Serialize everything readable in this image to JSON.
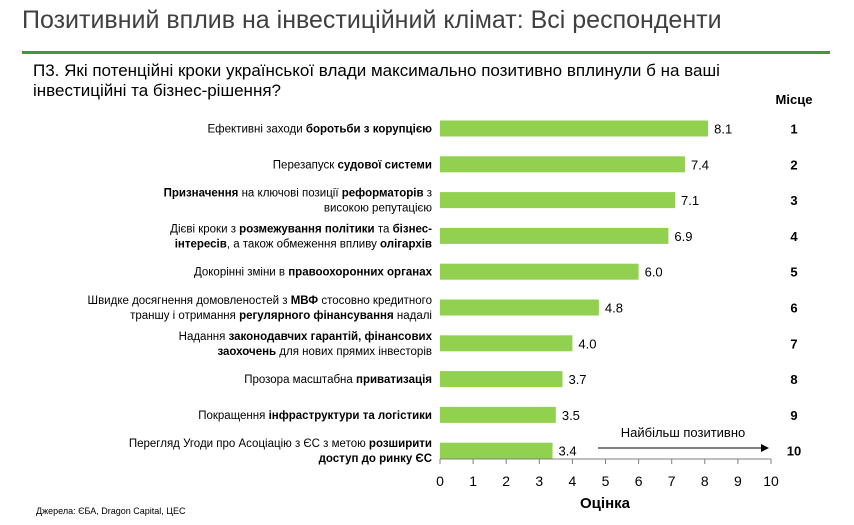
{
  "header": {
    "title": "Позитивний вплив на інвестиційний клімат: Всі респонденти",
    "question": "П3. Які потенційні кроки української влади максимально позитивно вплинули б на ваші інвестиційні та бізнес-рішення?"
  },
  "source": "Джерела: ЄБА, Dragon Capital, ЦЕС",
  "colors": {
    "bar": "#92d050",
    "rule": "#3d9b35",
    "title": "#404040"
  },
  "chart_data": {
    "type": "bar",
    "orientation": "horizontal",
    "xlabel": "Оцінка",
    "xlim": [
      0,
      10
    ],
    "xticks": [
      0,
      1,
      2,
      3,
      4,
      5,
      6,
      7,
      8,
      9,
      10
    ],
    "rank_header": "Місце",
    "annotation": "Найбільш позитивно",
    "categories": [
      {
        "lines": [
          [
            {
              "t": "Ефективні заходи "
            },
            {
              "t": "боротьби з корупцією",
              "b": true
            }
          ]
        ],
        "value": 8.1,
        "label": "8.1",
        "rank": "1"
      },
      {
        "lines": [
          [
            {
              "t": "Перезапуск "
            },
            {
              "t": "судової системи",
              "b": true
            }
          ]
        ],
        "value": 7.4,
        "label": "7.4",
        "rank": "2"
      },
      {
        "lines": [
          [
            {
              "t": "Призначення",
              "b": true
            },
            {
              "t": " на ключові позиції "
            },
            {
              "t": "реформаторів",
              "b": true
            },
            {
              "t": " з"
            }
          ],
          [
            {
              "t": "високою репутацією"
            }
          ]
        ],
        "value": 7.1,
        "label": "7.1",
        "rank": "3"
      },
      {
        "lines": [
          [
            {
              "t": "Дієві кроки з "
            },
            {
              "t": "розмежування політики",
              "b": true
            },
            {
              "t": " та "
            },
            {
              "t": "бізнес-",
              "b": true
            }
          ],
          [
            {
              "t": "інтересів",
              "b": true
            },
            {
              "t": ", а також обмеження впливу "
            },
            {
              "t": "олігархів",
              "b": true
            }
          ]
        ],
        "value": 6.9,
        "label": "6.9",
        "rank": "4"
      },
      {
        "lines": [
          [
            {
              "t": "Докорінні зміни в "
            },
            {
              "t": "правоохоронних органах",
              "b": true
            }
          ]
        ],
        "value": 6.0,
        "label": "6.0",
        "rank": "5"
      },
      {
        "lines": [
          [
            {
              "t": "Швидке досягнення домовленостей з "
            },
            {
              "t": "МВФ",
              "b": true
            },
            {
              "t": " стосовно кредитного"
            }
          ],
          [
            {
              "t": "траншу і отримання "
            },
            {
              "t": "регулярного фінансування",
              "b": true
            },
            {
              "t": " надалі"
            }
          ]
        ],
        "value": 4.8,
        "label": "4.8",
        "rank": "6"
      },
      {
        "lines": [
          [
            {
              "t": "Надання "
            },
            {
              "t": "законодавчих гарантій, фінансових",
              "b": true
            }
          ],
          [
            {
              "t": "заохочень",
              "b": true
            },
            {
              "t": " для нових прямих інвесторів"
            }
          ]
        ],
        "value": 4.0,
        "label": "4.0",
        "rank": "7"
      },
      {
        "lines": [
          [
            {
              "t": "Прозора масштабна "
            },
            {
              "t": "приватизація",
              "b": true
            }
          ]
        ],
        "value": 3.7,
        "label": "3.7",
        "rank": "8"
      },
      {
        "lines": [
          [
            {
              "t": "Покращення "
            },
            {
              "t": "інфраструктури та логістики",
              "b": true
            }
          ]
        ],
        "value": 3.5,
        "label": "3.5",
        "rank": "9"
      },
      {
        "lines": [
          [
            {
              "t": "Перегляд Угоди про Асоціацію з ЄС з метою "
            },
            {
              "t": "розширити",
              "b": true
            }
          ],
          [
            {
              "t": "доступ до ринку ЄС",
              "b": true
            }
          ]
        ],
        "value": 3.4,
        "label": "3.4",
        "rank": "10"
      }
    ]
  }
}
